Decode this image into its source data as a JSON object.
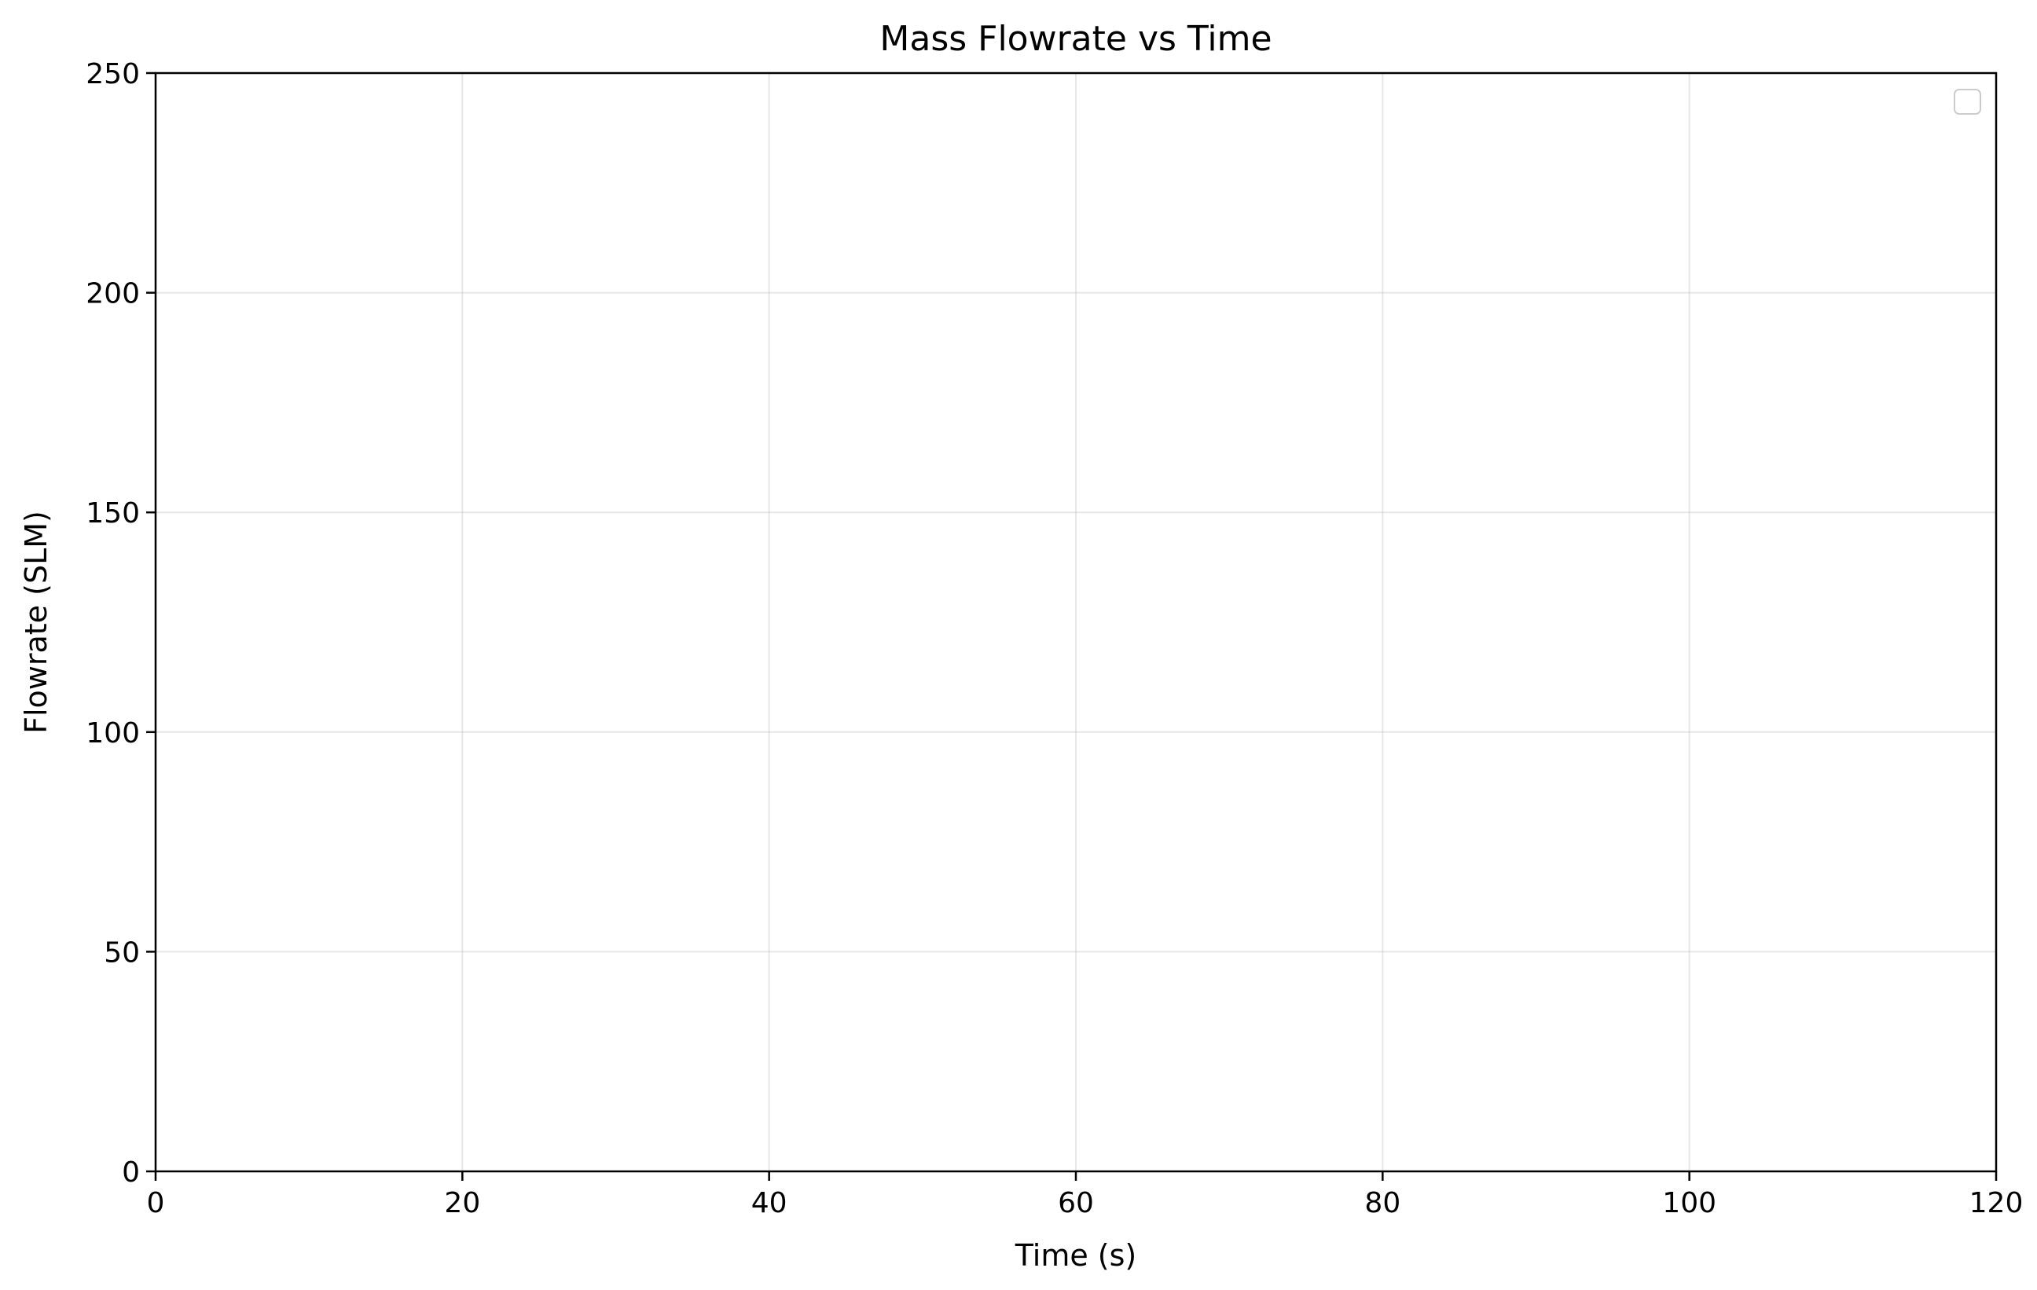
{
  "chart_data": {
    "type": "line",
    "title": "Mass Flowrate vs Time",
    "xlabel": "Time (s)",
    "ylabel": "Flowrate (SLM)",
    "xlim": [
      0,
      120
    ],
    "ylim": [
      0,
      250
    ],
    "x_ticks": [
      0,
      20,
      40,
      60,
      80,
      100,
      120
    ],
    "y_ticks": [
      0,
      50,
      100,
      150,
      200,
      250
    ],
    "grid": true,
    "legend": {
      "position": "top-right",
      "entries": []
    },
    "series": []
  }
}
